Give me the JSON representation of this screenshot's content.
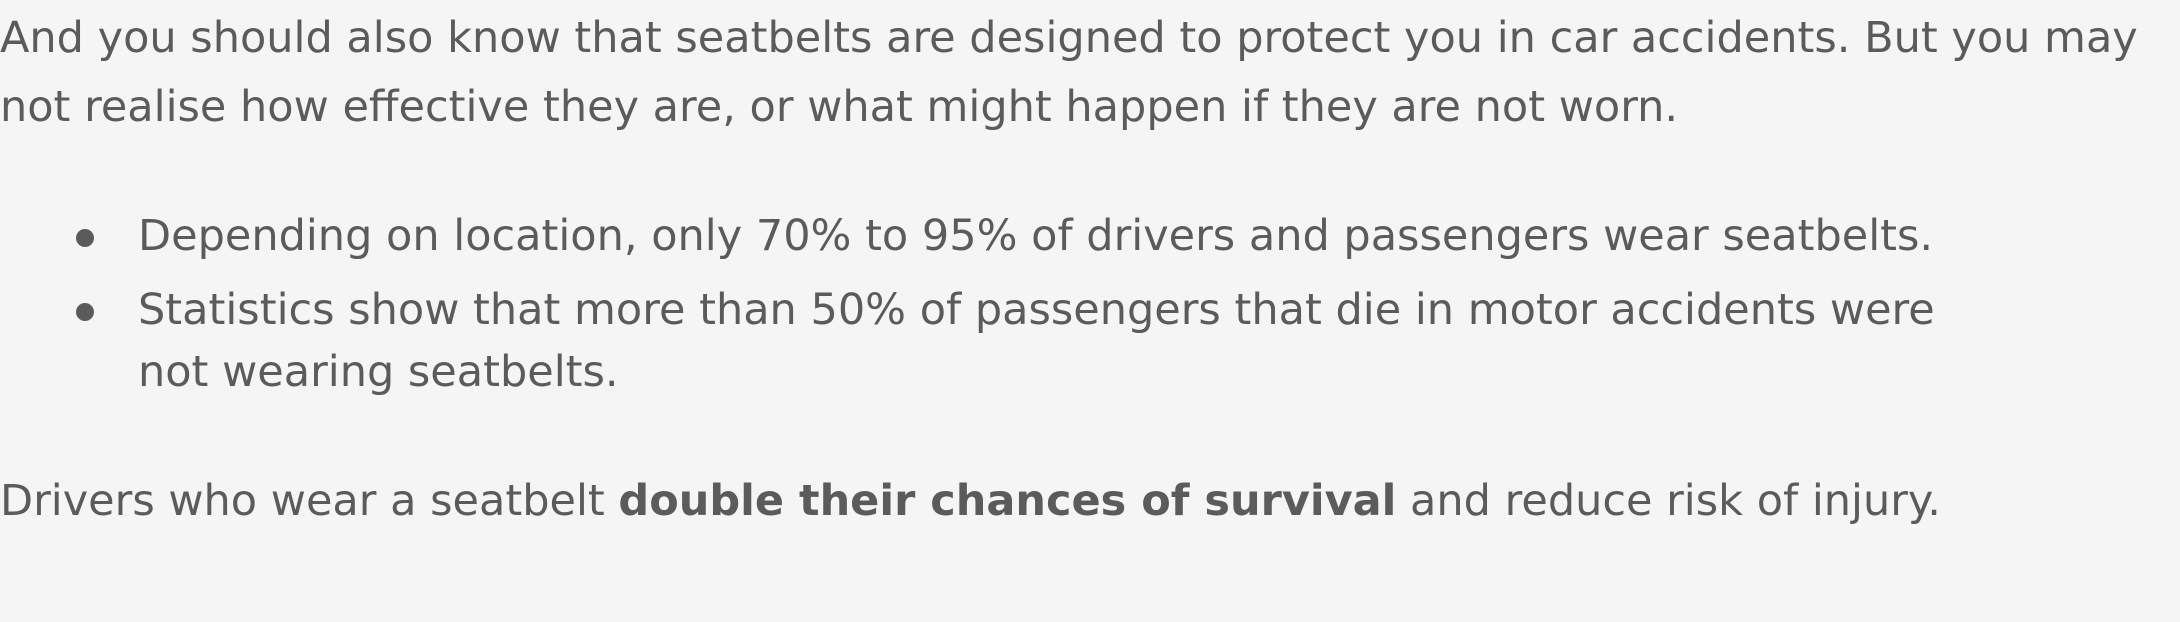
{
  "intro": "And you should also know that seatbelts are designed to protect you in car accidents. But you may not realise how effective they are, or what might happen if they are not worn.",
  "facts": [
    "Depending on location, only 70% to 95% of drivers and passengers wear seatbelts.",
    "Statistics show that more than 50% of passengers that die in motor accidents were not wearing seatbelts."
  ],
  "conclusion": {
    "before": "Drivers who wear a seatbelt ",
    "emphasis": "double their chances of survival",
    "after": " and reduce risk of injury."
  },
  "colors": {
    "background": "#f5f5f5",
    "text": "#5b5b5b"
  }
}
